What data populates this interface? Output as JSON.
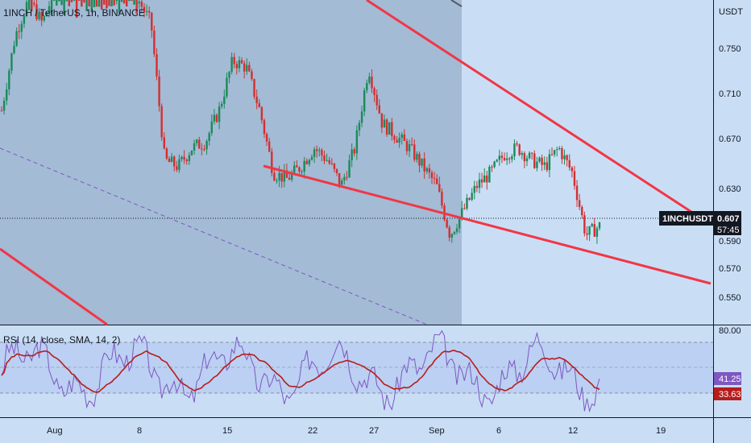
{
  "header": {
    "symbol_title": "1INCH / TetherUS, 1h, BINANCE"
  },
  "price_axis": {
    "unit": "USDT",
    "ticks": [
      "0.750",
      "0.710",
      "0.670",
      "0.630",
      "0.590",
      "0.570",
      "0.550"
    ]
  },
  "rsi_axis": {
    "ticks": [
      "80.00"
    ]
  },
  "time_axis": {
    "ticks": [
      "Aug",
      "8",
      "15",
      "22",
      "27",
      "Sep",
      "6",
      "12",
      "19"
    ]
  },
  "price_tag": {
    "symbol": "1INCHUSDT",
    "price": "0.607",
    "countdown": "57:45",
    "color": "#131722"
  },
  "rsi": {
    "legend": "RSI (14, close, SMA, 14, 2)",
    "value_rsi": "41.25",
    "value_sma": "33.63",
    "rsi_color": "#7e57c2",
    "sma_color": "#b71c1c"
  },
  "colors": {
    "background": "#c9def5",
    "shaded_zone": "#a3bbd5",
    "up_candle": "#1b8a5a",
    "down_candle": "#d32f2f",
    "trendline": "#f23645",
    "dashed_line": "#7e57c2"
  },
  "chart_data": {
    "type": "candlestick",
    "symbol": "1INCHUSDT",
    "interval": "1h",
    "x": [
      "Aug",
      "8",
      "15",
      "22",
      "27",
      "Sep",
      "6",
      "12",
      "19"
    ],
    "close_path": [
      0.7,
      0.76,
      0.79,
      0.77,
      0.8,
      0.82,
      0.79,
      0.81,
      0.79,
      0.8,
      0.79,
      0.77,
      0.66,
      0.655,
      0.67,
      0.675,
      0.7,
      0.74,
      0.735,
      0.7,
      0.65,
      0.645,
      0.655,
      0.67,
      0.66,
      0.64,
      0.67,
      0.735,
      0.69,
      0.68,
      0.67,
      0.655,
      0.64,
      0.6,
      0.62,
      0.64,
      0.65,
      0.665,
      0.67,
      0.66,
      0.655,
      0.67,
      0.65,
      0.6,
      0.607
    ],
    "last_price": 0.607,
    "price_range": [
      0.54,
      0.8
    ],
    "rsi_range": [
      20,
      80
    ],
    "rsi_levels": [
      70,
      30
    ]
  }
}
